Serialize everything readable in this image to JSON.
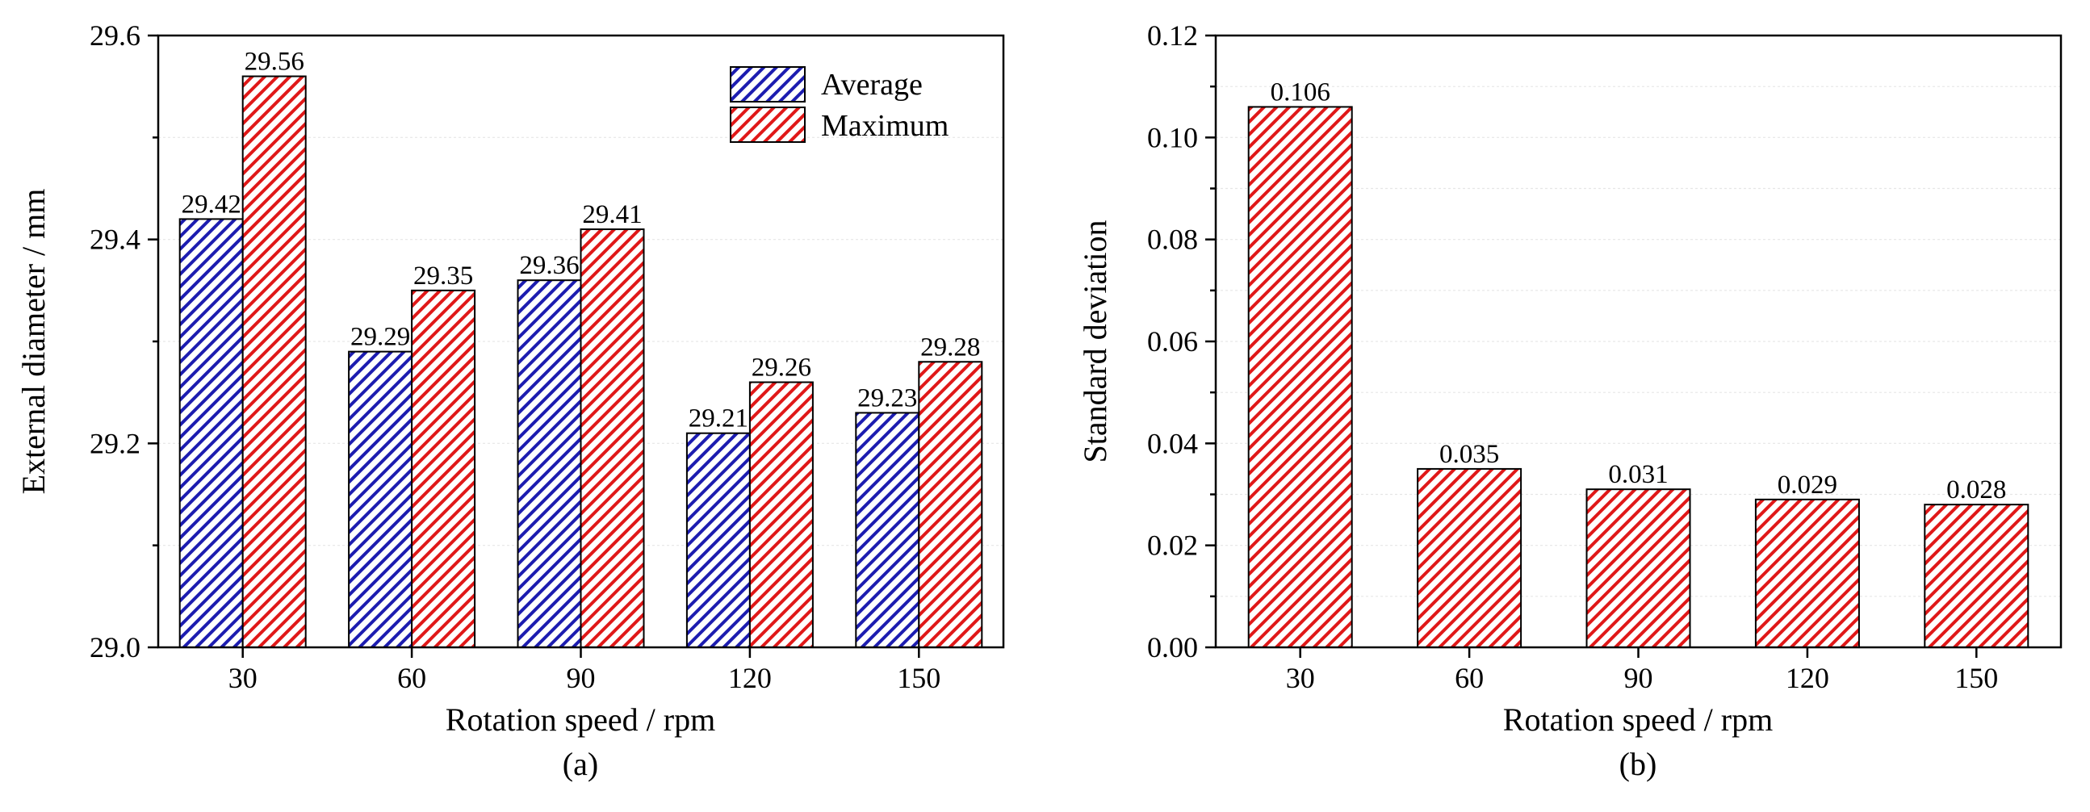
{
  "colors": {
    "average": "#1c1cb0",
    "maximum": "#e01818",
    "axis": "#000000",
    "grid": "#e6e6e6"
  },
  "chart_data": [
    {
      "type": "bar",
      "panel_label": "(a)",
      "xlabel": "Rotation speed / rpm",
      "ylabel": "External diameter / mm",
      "categories": [
        "30",
        "60",
        "90",
        "120",
        "150"
      ],
      "series": [
        {
          "name": "Average",
          "values": [
            29.42,
            29.29,
            29.36,
            29.21,
            29.23
          ],
          "labels": [
            "29.42",
            "29.29",
            "29.36",
            "29.21",
            "29.23"
          ]
        },
        {
          "name": "Maximum",
          "values": [
            29.56,
            29.35,
            29.41,
            29.26,
            29.28
          ],
          "labels": [
            "29.56",
            "29.35",
            "29.41",
            "29.26",
            "29.28"
          ]
        }
      ],
      "ylim": [
        29.0,
        29.6
      ],
      "yticks": [
        "29.0",
        "29.2",
        "29.4",
        "29.6"
      ],
      "grid": true,
      "legend": "top-right"
    },
    {
      "type": "bar",
      "panel_label": "(b)",
      "xlabel": "Rotation speed / rpm",
      "ylabel": "Standard deviation",
      "categories": [
        "30",
        "60",
        "90",
        "120",
        "150"
      ],
      "series": [
        {
          "name": "Standard deviation",
          "values": [
            0.106,
            0.035,
            0.031,
            0.029,
            0.028
          ],
          "labels": [
            "0.106",
            "0.035",
            "0.031",
            "0.029",
            "0.028"
          ]
        }
      ],
      "ylim": [
        0.0,
        0.12
      ],
      "yticks": [
        "0.00",
        "0.02",
        "0.04",
        "0.06",
        "0.08",
        "0.10",
        "0.12"
      ],
      "grid": true,
      "legend": "none"
    }
  ]
}
